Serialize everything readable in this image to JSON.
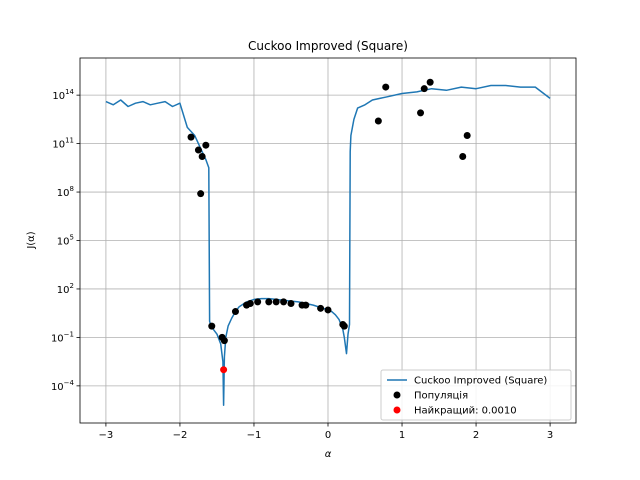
{
  "chart_data": {
    "type": "line",
    "title": "Cuckoo Improved (Square)",
    "xlabel": "α",
    "ylabel": "J(α)",
    "xlim": [
      -3.35,
      3.35
    ],
    "ylim_log10": [
      -6.3,
      16.3
    ],
    "yscale": "log",
    "grid": true,
    "legend_placement": "lower-right",
    "x_ticks": [
      -3,
      -2,
      -1,
      0,
      1,
      2,
      3
    ],
    "x_tick_labels": [
      "−3",
      "−2",
      "−1",
      "0",
      "1",
      "2",
      "3"
    ],
    "y_ticks_log10": [
      -4,
      -1,
      2,
      5,
      8,
      11,
      14
    ],
    "y_tick_labels": [
      {
        "base": "10",
        "exp": "−4"
      },
      {
        "base": "10",
        "exp": "−1"
      },
      {
        "base": "10",
        "exp": "2"
      },
      {
        "base": "10",
        "exp": "5"
      },
      {
        "base": "10",
        "exp": "8"
      },
      {
        "base": "10",
        "exp": "11"
      },
      {
        "base": "10",
        "exp": "14"
      }
    ],
    "series": [
      {
        "name": "Cuckoo Improved (Square)",
        "kind": "line",
        "color": "#1f77b4",
        "x": [
          -3.0,
          -2.9,
          -2.8,
          -2.7,
          -2.6,
          -2.5,
          -2.4,
          -2.3,
          -2.2,
          -2.1,
          -2.0,
          -1.9,
          -1.8,
          -1.75,
          -1.7,
          -1.65,
          -1.61,
          -1.6,
          -1.58,
          -1.55,
          -1.5,
          -1.45,
          -1.42,
          -1.41,
          -1.4,
          -1.38,
          -1.35,
          -1.3,
          -1.25,
          -1.2,
          -1.1,
          -1.0,
          -0.9,
          -0.8,
          -0.7,
          -0.6,
          -0.5,
          -0.4,
          -0.3,
          -0.2,
          -0.1,
          0.0,
          0.05,
          0.1,
          0.15,
          0.2,
          0.22,
          0.25,
          0.27,
          0.29,
          0.3,
          0.31,
          0.35,
          0.4,
          0.5,
          0.6,
          0.7,
          0.8,
          1.0,
          1.2,
          1.4,
          1.6,
          1.8,
          2.0,
          2.2,
          2.4,
          2.6,
          2.8,
          3.0
        ],
        "y_log10": [
          13.6,
          13.4,
          13.7,
          13.3,
          13.5,
          13.6,
          13.4,
          13.5,
          13.6,
          13.3,
          13.5,
          12.0,
          11.5,
          11.0,
          10.5,
          10.0,
          9.5,
          0.0,
          -0.3,
          -0.5,
          -0.8,
          -1.4,
          -2.5,
          -5.2,
          -2.2,
          -1.0,
          -0.3,
          0.2,
          0.6,
          0.9,
          1.2,
          1.35,
          1.4,
          1.4,
          1.35,
          1.3,
          1.25,
          1.2,
          1.1,
          1.0,
          0.85,
          0.7,
          0.6,
          0.4,
          0.1,
          -0.5,
          -1.0,
          -2.0,
          -0.8,
          -0.2,
          10.5,
          11.5,
          12.5,
          13.2,
          13.4,
          13.7,
          13.8,
          13.9,
          14.1,
          14.2,
          14.4,
          14.3,
          14.5,
          14.4,
          14.6,
          14.6,
          14.5,
          14.5,
          13.8
        ]
      },
      {
        "name": "Популяція",
        "kind": "scatter",
        "color": "#000000",
        "x": [
          -1.85,
          -1.75,
          -1.7,
          -1.65,
          -1.72,
          -1.57,
          -1.43,
          -1.4,
          -1.25,
          -1.1,
          -1.05,
          -0.95,
          -0.8,
          -0.7,
          -0.6,
          -0.5,
          -0.35,
          -0.3,
          -0.1,
          0.0,
          0.2,
          0.22,
          0.68,
          0.78,
          1.25,
          1.3,
          1.38,
          1.82,
          1.88
        ],
        "y_log10": [
          11.4,
          10.6,
          10.2,
          10.9,
          7.9,
          -0.3,
          -1.0,
          -1.2,
          0.6,
          1.0,
          1.1,
          1.2,
          1.2,
          1.2,
          1.2,
          1.1,
          1.0,
          1.0,
          0.8,
          0.7,
          -0.2,
          -0.3,
          12.4,
          14.5,
          12.9,
          14.4,
          14.8,
          10.2,
          11.5
        ]
      },
      {
        "name": "Найкращий: 0.0010",
        "kind": "scatter",
        "color": "#ff0000",
        "x": [
          -1.41
        ],
        "y_log10": [
          -3.0
        ]
      }
    ]
  }
}
